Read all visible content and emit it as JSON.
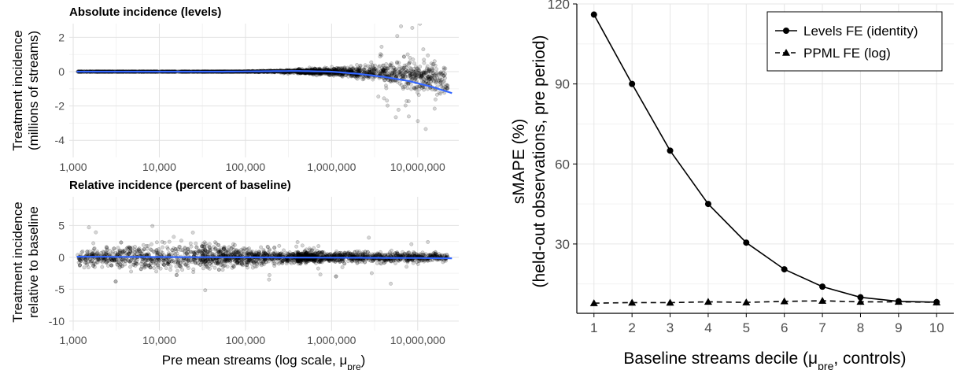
{
  "chart_data": [
    {
      "type": "scatter",
      "panel": "top-left",
      "title": "Absolute incidence (levels)",
      "ylabel_lines": [
        "Treatment incidence",
        "(millions of streams)"
      ],
      "xscale": "log",
      "xlim": [
        900,
        30000000
      ],
      "ylim": [
        -5.0,
        2.8
      ],
      "xticks": [
        1000,
        10000,
        100000,
        1000000,
        10000000
      ],
      "xtick_labels": [
        "1,000",
        "10,000",
        "100,000",
        "1,000,000",
        "10,000,000"
      ],
      "yticks": [
        2,
        0,
        -2,
        -4
      ],
      "ytick_labels": [
        "2",
        "0",
        "-2",
        "-4"
      ],
      "grid": true,
      "point_color": "#000000",
      "smooth_color": "#3366ff",
      "smooth": [
        {
          "x": 1100,
          "y": 0.0
        },
        {
          "x": 10000,
          "y": 0.0
        },
        {
          "x": 50000,
          "y": 0.0
        },
        {
          "x": 150000,
          "y": 0.02
        },
        {
          "x": 400000,
          "y": 0.04
        },
        {
          "x": 1000000,
          "y": 0.0
        },
        {
          "x": 2000000,
          "y": -0.12
        },
        {
          "x": 4000000,
          "y": -0.3
        },
        {
          "x": 8000000,
          "y": -0.55
        },
        {
          "x": 15000000,
          "y": -0.9
        },
        {
          "x": 25000000,
          "y": -1.25
        }
      ]
    },
    {
      "type": "scatter",
      "panel": "bottom-left",
      "title": "Relative incidence (percent of baseline)",
      "ylabel_lines": [
        "Treatment incidence",
        "relative to baseline"
      ],
      "xlabel": "Pre mean streams (log scale, μ",
      "xlabel_sub": "pre",
      "xlabel_end": ")",
      "xscale": "log",
      "xlim": [
        900,
        30000000
      ],
      "ylim": [
        -11.5,
        9.5
      ],
      "xticks": [
        1000,
        10000,
        100000,
        1000000,
        10000000
      ],
      "xtick_labels": [
        "1,000",
        "10,000",
        "100,000",
        "1,000,000",
        "10,000,000"
      ],
      "yticks": [
        5,
        0,
        -5,
        -10
      ],
      "ytick_labels": [
        "5",
        "0",
        "-5",
        "-10"
      ],
      "grid": true,
      "point_color": "#000000",
      "smooth_color": "#3366ff",
      "smooth": [
        {
          "x": 1100,
          "y": 0.1
        },
        {
          "x": 100000,
          "y": 0.0
        },
        {
          "x": 1000000,
          "y": -0.05
        },
        {
          "x": 10000000,
          "y": -0.1
        },
        {
          "x": 25000000,
          "y": -0.15
        }
      ]
    },
    {
      "type": "line",
      "panel": "right",
      "ylabel_lines": [
        "sMAPE (%)",
        "(held-out observations, pre period)"
      ],
      "xlabel": "Baseline streams decile (μ",
      "xlabel_sub": "pre",
      "xlabel_end": ", controls)",
      "xlim": [
        0.55,
        10.45
      ],
      "ylim": [
        4,
        120
      ],
      "x": [
        1,
        2,
        3,
        4,
        5,
        6,
        7,
        8,
        9,
        10
      ],
      "xtick_labels": [
        "1",
        "2",
        "3",
        "4",
        "5",
        "6",
        "7",
        "8",
        "9",
        "10"
      ],
      "yticks": [
        30,
        60,
        90,
        120
      ],
      "ytick_labels": [
        "30",
        "60",
        "90",
        "120"
      ],
      "grid": true,
      "legend_position": "top-right",
      "series": [
        {
          "name": "Levels FE (identity)",
          "marker": "circle",
          "dash": "solid",
          "values": [
            116,
            90,
            65,
            45,
            30.5,
            20.5,
            14,
            10,
            8.5,
            8.2
          ]
        },
        {
          "name": "PPML FE (log)",
          "marker": "triangle",
          "dash": "dashed",
          "values": [
            7.8,
            8.0,
            8.0,
            8.3,
            8.1,
            8.5,
            8.7,
            8.3,
            8.3,
            8.1
          ]
        }
      ]
    }
  ]
}
